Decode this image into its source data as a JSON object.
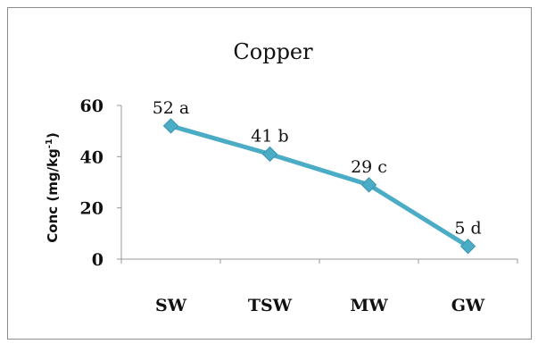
{
  "chart_data": {
    "type": "line",
    "title": "Copper",
    "ylabel": "Conc (mg/kg-1)",
    "ylabel_main": "Conc (mg/kg",
    "ylabel_sup": "-1",
    "ylabel_close": ")",
    "categories": [
      "SW",
      "TSW",
      "MW",
      "GW"
    ],
    "series": [
      {
        "values": [
          52,
          41,
          29,
          5
        ],
        "color": "#4bacc6"
      }
    ],
    "data_labels": [
      "52 a",
      "41 b",
      "29 c",
      "5 d"
    ],
    "yticks": [
      0,
      20,
      40,
      60
    ],
    "ylim": [
      0,
      60
    ],
    "grid": false,
    "legend": "none"
  }
}
